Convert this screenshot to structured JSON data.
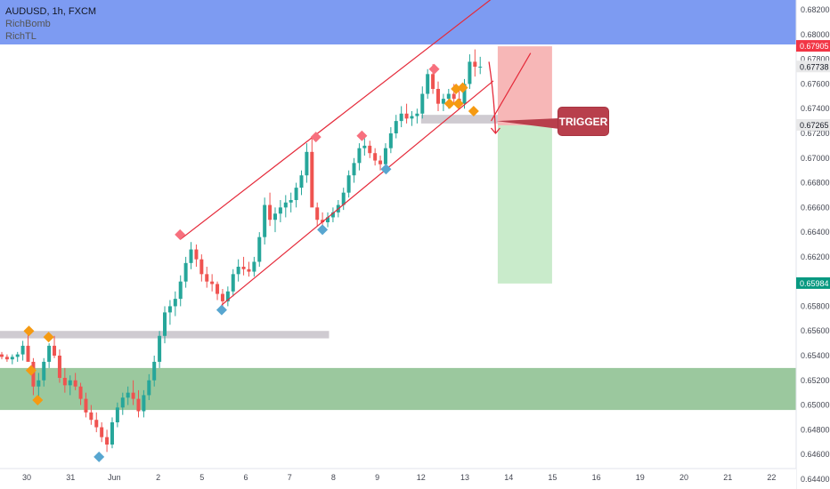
{
  "header": {
    "symbol": "AUDUSD, 1h, FXCM",
    "indicators": [
      "RichBomb",
      "RichTL"
    ]
  },
  "annotation": {
    "trigger_label": "TRIGGER"
  },
  "chart_data": {
    "type": "candlestick",
    "symbol": "AUDUSD",
    "timeframe": "1h",
    "exchange": "FXCM",
    "ylim": [
      0.6432,
      0.6828
    ],
    "y_ticks": [
      "0.64400",
      "0.64600",
      "0.64800",
      "0.65000",
      "0.65200",
      "0.65400",
      "0.65600",
      "0.65800",
      "0.66000",
      "0.66200",
      "0.66400",
      "0.66600",
      "0.66800",
      "0.67000",
      "0.67200",
      "0.67400",
      "0.67600",
      "0.67800",
      "0.68000",
      "0.68200"
    ],
    "x_ticks": [
      {
        "label": "30",
        "day": 0
      },
      {
        "label": "31",
        "day": 1
      },
      {
        "label": "Jun",
        "day": 2
      },
      {
        "label": "2",
        "day": 3
      },
      {
        "label": "5",
        "day": 4
      },
      {
        "label": "6",
        "day": 5
      },
      {
        "label": "7",
        "day": 6
      },
      {
        "label": "8",
        "day": 7
      },
      {
        "label": "9",
        "day": 8
      },
      {
        "label": "12",
        "day": 9
      },
      {
        "label": "13",
        "day": 10
      },
      {
        "label": "14",
        "day": 11
      },
      {
        "label": "15",
        "day": 12
      },
      {
        "label": "16",
        "day": 13
      },
      {
        "label": "19",
        "day": 14
      },
      {
        "label": "20",
        "day": 15
      },
      {
        "label": "21",
        "day": 16
      },
      {
        "label": "22",
        "day": 17
      }
    ],
    "price_labels": [
      {
        "price": 0.67905,
        "text": "0.67905",
        "color": "#f23645"
      },
      {
        "price": 0.67738,
        "text": "0.67738",
        "color": "#e9e9ea",
        "text_color": "#131722"
      },
      {
        "price": 0.67265,
        "text": "0.67265",
        "color": "#e9e9ea",
        "text_color": "#131722"
      },
      {
        "price": 0.65984,
        "text": "0.65984",
        "color": "#089981"
      }
    ],
    "zones": [
      {
        "name": "supply-zone",
        "day0": -1,
        "day1": 18,
        "y0": 0.6792,
        "y1": 0.6828,
        "color": "#7d9bf2"
      },
      {
        "name": "demand-zone",
        "day0": -1,
        "day1": 18,
        "y0": 0.6496,
        "y1": 0.653,
        "color": "#9bc89e"
      },
      {
        "name": "support-level",
        "day0": -1,
        "day1": 6.9,
        "y0": 0.6554,
        "y1": 0.656,
        "color": "#cfcbd1"
      },
      {
        "name": "breakout-level",
        "day0": 9.0,
        "day1": 11.7,
        "y0": 0.6728,
        "y1": 0.6735,
        "color": "#cfcbd1"
      },
      {
        "name": "stop-loss-box",
        "day0": 10.75,
        "day1": 11.99,
        "y0": 0.67265,
        "y1": 0.67905,
        "color": "#f7b7b7"
      },
      {
        "name": "take-profit-box",
        "day0": 10.75,
        "day1": 11.99,
        "y0": 0.65984,
        "y1": 0.67265,
        "color": "#c9ebcb"
      }
    ],
    "trendlines": [
      {
        "name": "channel-upper",
        "x0": 3.5,
        "y0": 0.6634,
        "x1": 10.65,
        "y1": 0.683
      },
      {
        "name": "channel-lower",
        "x0": 4.45,
        "y0": 0.6581,
        "x1": 10.65,
        "y1": 0.67625
      },
      {
        "name": "projected-line",
        "x0": 10.6,
        "y0": 0.673,
        "x1": 11.5,
        "y1": 0.6785
      }
    ],
    "candles_ohlc": [
      [
        0.6541,
        0.6543,
        0.6537,
        0.6539
      ],
      [
        0.6539,
        0.6541,
        0.6535,
        0.6537
      ],
      [
        0.6537,
        0.6541,
        0.6533,
        0.6539
      ],
      [
        0.6539,
        0.6543,
        0.6535,
        0.6541
      ],
      [
        0.6541,
        0.6552,
        0.6536,
        0.6548
      ],
      [
        0.6548,
        0.6559,
        0.654,
        0.6535
      ],
      [
        0.6535,
        0.6538,
        0.6508,
        0.6515
      ],
      [
        0.6515,
        0.6526,
        0.6503,
        0.652
      ],
      [
        0.652,
        0.6538,
        0.6515,
        0.6535
      ],
      [
        0.6535,
        0.655,
        0.653,
        0.6548
      ],
      [
        0.6548,
        0.6556,
        0.6538,
        0.654
      ],
      [
        0.654,
        0.6545,
        0.6518,
        0.6522
      ],
      [
        0.6522,
        0.653,
        0.651,
        0.6516
      ],
      [
        0.6516,
        0.6524,
        0.6508,
        0.652
      ],
      [
        0.652,
        0.6526,
        0.6512,
        0.6515
      ],
      [
        0.6515,
        0.6518,
        0.65,
        0.6505
      ],
      [
        0.6505,
        0.651,
        0.649,
        0.6494
      ],
      [
        0.6494,
        0.65,
        0.6484,
        0.6488
      ],
      [
        0.6488,
        0.6494,
        0.6478,
        0.6482
      ],
      [
        0.6482,
        0.6486,
        0.647,
        0.6474
      ],
      [
        0.6474,
        0.648,
        0.6462,
        0.6468
      ],
      [
        0.6468,
        0.649,
        0.6465,
        0.6486
      ],
      [
        0.6486,
        0.6502,
        0.6482,
        0.6498
      ],
      [
        0.6498,
        0.651,
        0.6492,
        0.6506
      ],
      [
        0.6506,
        0.6515,
        0.65,
        0.651
      ],
      [
        0.651,
        0.652,
        0.65,
        0.6505
      ],
      [
        0.6505,
        0.6512,
        0.649,
        0.6495
      ],
      [
        0.6495,
        0.6512,
        0.649,
        0.6508
      ],
      [
        0.6508,
        0.6525,
        0.6504,
        0.652
      ],
      [
        0.652,
        0.654,
        0.6515,
        0.6535
      ],
      [
        0.6535,
        0.656,
        0.653,
        0.6556
      ],
      [
        0.6556,
        0.658,
        0.655,
        0.6575
      ],
      [
        0.6575,
        0.6585,
        0.6565,
        0.658
      ],
      [
        0.658,
        0.6592,
        0.6572,
        0.6586
      ],
      [
        0.6586,
        0.6605,
        0.658,
        0.66
      ],
      [
        0.66,
        0.662,
        0.6595,
        0.6615
      ],
      [
        0.6615,
        0.6632,
        0.661,
        0.6626
      ],
      [
        0.6626,
        0.663,
        0.6612,
        0.6618
      ],
      [
        0.6618,
        0.6622,
        0.66,
        0.6606
      ],
      [
        0.6606,
        0.6612,
        0.6595,
        0.66
      ],
      [
        0.66,
        0.6606,
        0.6592,
        0.6598
      ],
      [
        0.6598,
        0.66,
        0.6585,
        0.659
      ],
      [
        0.659,
        0.6594,
        0.658,
        0.6584
      ],
      [
        0.6584,
        0.6596,
        0.658,
        0.6592
      ],
      [
        0.6592,
        0.661,
        0.6588,
        0.6606
      ],
      [
        0.6606,
        0.6618,
        0.66,
        0.6612
      ],
      [
        0.6612,
        0.662,
        0.6605,
        0.661
      ],
      [
        0.661,
        0.6616,
        0.6604,
        0.6608
      ],
      [
        0.6608,
        0.662,
        0.6604,
        0.6616
      ],
      [
        0.6616,
        0.664,
        0.6612,
        0.6636
      ],
      [
        0.6636,
        0.6668,
        0.663,
        0.6662
      ],
      [
        0.6662,
        0.6672,
        0.6645,
        0.665
      ],
      [
        0.665,
        0.666,
        0.664,
        0.6655
      ],
      [
        0.6655,
        0.6666,
        0.6648,
        0.666
      ],
      [
        0.666,
        0.667,
        0.6652,
        0.6664
      ],
      [
        0.6664,
        0.6672,
        0.6656,
        0.6666
      ],
      [
        0.6666,
        0.668,
        0.666,
        0.6676
      ],
      [
        0.6676,
        0.669,
        0.667,
        0.6686
      ],
      [
        0.6686,
        0.6712,
        0.668,
        0.6705
      ],
      [
        0.6705,
        0.6717,
        0.67,
        0.666
      ],
      [
        0.666,
        0.6664,
        0.6645,
        0.665
      ],
      [
        0.665,
        0.6656,
        0.6642,
        0.6648
      ],
      [
        0.6648,
        0.6656,
        0.6644,
        0.6652
      ],
      [
        0.6652,
        0.666,
        0.6648,
        0.6656
      ],
      [
        0.6656,
        0.6666,
        0.6652,
        0.6662
      ],
      [
        0.6662,
        0.6676,
        0.6658,
        0.6672
      ],
      [
        0.6672,
        0.669,
        0.6668,
        0.6686
      ],
      [
        0.6686,
        0.67,
        0.668,
        0.6696
      ],
      [
        0.6696,
        0.6712,
        0.669,
        0.6708
      ],
      [
        0.6708,
        0.6716,
        0.6702,
        0.671
      ],
      [
        0.671,
        0.6714,
        0.67,
        0.6704
      ],
      [
        0.6704,
        0.6708,
        0.6694,
        0.6698
      ],
      [
        0.6698,
        0.6702,
        0.669,
        0.6695
      ],
      [
        0.6695,
        0.6712,
        0.6692,
        0.6708
      ],
      [
        0.6708,
        0.6725,
        0.6704,
        0.672
      ],
      [
        0.672,
        0.6735,
        0.6716,
        0.673
      ],
      [
        0.673,
        0.6742,
        0.6725,
        0.6736
      ],
      [
        0.6736,
        0.6744,
        0.6728,
        0.6732
      ],
      [
        0.6732,
        0.6738,
        0.6726,
        0.6734
      ],
      [
        0.6734,
        0.674,
        0.6728,
        0.6736
      ],
      [
        0.6736,
        0.6758,
        0.6732,
        0.6752
      ],
      [
        0.6752,
        0.6772,
        0.6748,
        0.6768
      ],
      [
        0.6768,
        0.6776,
        0.6752,
        0.6756
      ],
      [
        0.6756,
        0.6762,
        0.6738,
        0.6744
      ],
      [
        0.6744,
        0.6752,
        0.6738,
        0.6748
      ],
      [
        0.6748,
        0.6756,
        0.674,
        0.6752
      ],
      [
        0.6752,
        0.676,
        0.6744,
        0.6748
      ],
      [
        0.6748,
        0.6756,
        0.674,
        0.6744
      ],
      [
        0.6744,
        0.6764,
        0.674,
        0.676
      ],
      [
        0.676,
        0.6784,
        0.6756,
        0.6778
      ],
      [
        0.6778,
        0.6788,
        0.6766,
        0.6774
      ],
      [
        0.6774,
        0.6782,
        0.6768,
        0.6774
      ]
    ],
    "swing_markers": [
      {
        "type": "high",
        "color": "#f7707e",
        "day": 3.5,
        "price": 0.6638
      },
      {
        "type": "low",
        "color": "#58a6d0",
        "day": 4.45,
        "price": 0.6577
      },
      {
        "type": "high",
        "color": "#f7707e",
        "day": 6.6,
        "price": 0.6717
      },
      {
        "type": "low",
        "color": "#58a6d0",
        "day": 6.75,
        "price": 0.6642
      },
      {
        "type": "high",
        "color": "#f7707e",
        "day": 7.65,
        "price": 0.6718
      },
      {
        "type": "low",
        "color": "#58a6d0",
        "day": 8.2,
        "price": 0.6691
      },
      {
        "type": "high",
        "color": "#f7707e",
        "day": 9.3,
        "price": 0.6772
      },
      {
        "type": "low",
        "color": "#58a6d0",
        "day": 1.65,
        "price": 0.6458
      },
      {
        "type": "pivot",
        "color": "#f59a12",
        "day": 0.05,
        "price": 0.656
      },
      {
        "type": "pivot",
        "color": "#f59a12",
        "day": 0.5,
        "price": 0.6555
      },
      {
        "type": "pivot",
        "color": "#f59a12",
        "day": 0.1,
        "price": 0.6528
      },
      {
        "type": "pivot",
        "color": "#f59a12",
        "day": 0.25,
        "price": 0.6504
      },
      {
        "type": "pivot",
        "color": "#f59a12",
        "day": 9.65,
        "price": 0.6744
      },
      {
        "type": "pivot",
        "color": "#f59a12",
        "day": 9.8,
        "price": 0.6756
      },
      {
        "type": "pivot",
        "color": "#f59a12",
        "day": 9.95,
        "price": 0.6757
      },
      {
        "type": "pivot",
        "color": "#f59a12",
        "day": 9.85,
        "price": 0.6744
      },
      {
        "type": "pivot",
        "color": "#f59a12",
        "day": 10.2,
        "price": 0.6738
      }
    ]
  }
}
